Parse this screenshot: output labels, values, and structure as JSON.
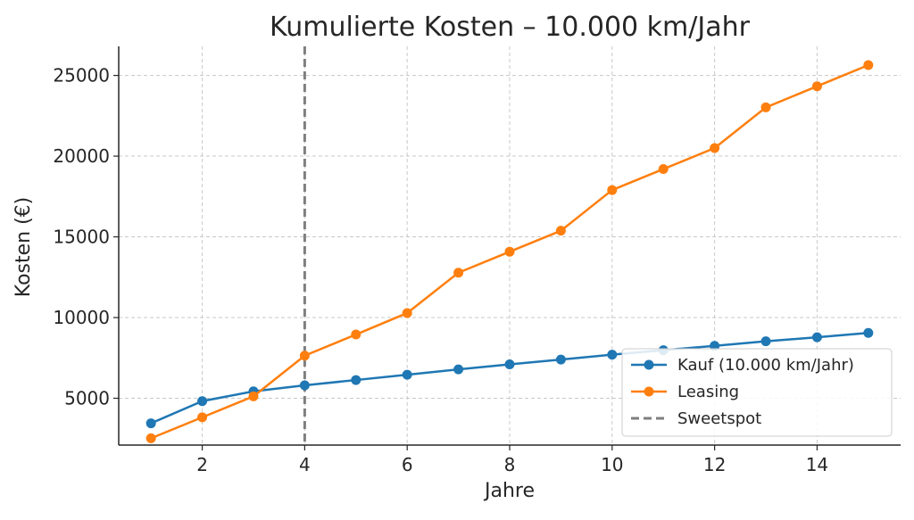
{
  "chart_data": {
    "type": "line",
    "title": "Kumulierte Kosten – 10.000 km/Jahr",
    "xlabel": "Jahre",
    "ylabel": "Kosten (€)",
    "x": [
      1,
      2,
      3,
      4,
      5,
      6,
      7,
      8,
      9,
      10,
      11,
      12,
      13,
      14,
      15
    ],
    "xlim": [
      0.37,
      15.63
    ],
    "ylim": [
      2100,
      26800
    ],
    "xticks": [
      2,
      4,
      6,
      8,
      10,
      12,
      14
    ],
    "yticks": [
      5000,
      10000,
      15000,
      20000,
      25000
    ],
    "grid": true,
    "legend": "lower-right",
    "series": [
      {
        "name": "Kauf (10.000 km/Jahr)",
        "color": "#1f77b4",
        "marker": "circle",
        "values": [
          3450,
          4820,
          5430,
          5800,
          6130,
          6460,
          6790,
          7100,
          7400,
          7700,
          7980,
          8250,
          8530,
          8780,
          9050
        ]
      },
      {
        "name": "Leasing",
        "color": "#ff7f0e",
        "marker": "circle",
        "values": [
          2520,
          3820,
          5120,
          7640,
          8950,
          10280,
          12780,
          14080,
          15380,
          17900,
          19200,
          20500,
          23020,
          24330,
          25640
        ]
      }
    ],
    "vlines": [
      {
        "name": "Sweetspot",
        "x": 4,
        "color": "#7f7f7f",
        "style": "dashed"
      }
    ]
  }
}
